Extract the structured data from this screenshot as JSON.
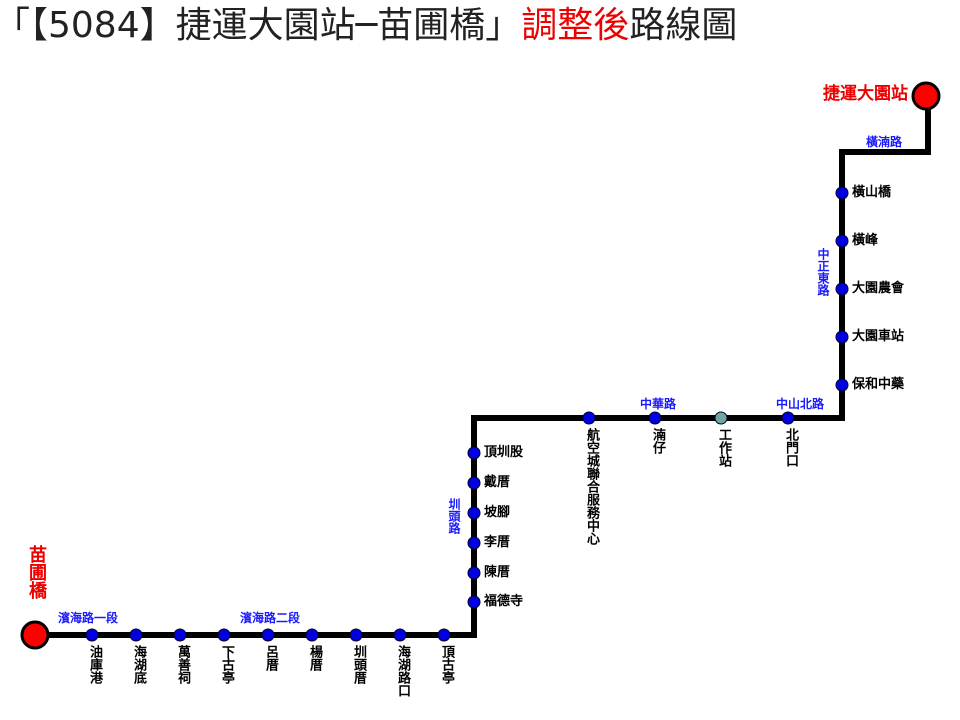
{
  "title": {
    "prefix": "「【5084】捷運大園站─苗圃橋」",
    "highlight": "調整後",
    "suffix": "路線圖"
  },
  "termini": [
    {
      "label": "捷運大園站"
    },
    {
      "label": "苗圃橋"
    }
  ],
  "roads": [
    {
      "label": "橫湳路"
    },
    {
      "label": "中正東路"
    },
    {
      "label": "中山北路"
    },
    {
      "label": "中華路"
    },
    {
      "label": "圳頭路"
    },
    {
      "label": "濱海路二段"
    },
    {
      "label": "濱海路一段"
    }
  ],
  "stops": [
    {
      "label": "橫山橋"
    },
    {
      "label": "橫峰"
    },
    {
      "label": "大園農會"
    },
    {
      "label": "大園車站"
    },
    {
      "label": "保和中藥"
    },
    {
      "label": "北門口"
    },
    {
      "label": "工作站"
    },
    {
      "label": "湳仔"
    },
    {
      "label": "航空城聯合服務中心"
    },
    {
      "label": "頂圳股"
    },
    {
      "label": "戴厝"
    },
    {
      "label": "坡腳"
    },
    {
      "label": "李厝"
    },
    {
      "label": "陳厝"
    },
    {
      "label": "福德寺"
    },
    {
      "label": "頂古亭"
    },
    {
      "label": "海湖路口"
    },
    {
      "label": "圳頭厝"
    },
    {
      "label": "楊厝"
    },
    {
      "label": "呂厝"
    },
    {
      "label": "下古亭"
    },
    {
      "label": "萬善祠"
    },
    {
      "label": "海湖底"
    },
    {
      "label": "油庫港"
    }
  ]
}
